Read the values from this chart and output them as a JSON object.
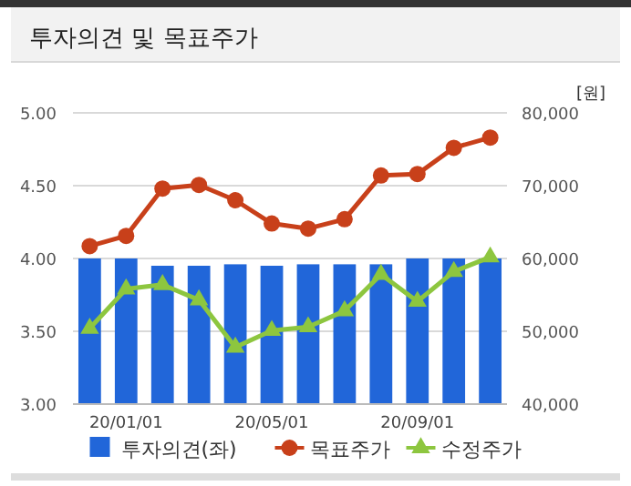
{
  "chart_data": {
    "type": "bar",
    "title": "투자의견 및 목표주가",
    "y2label": "[원]",
    "categories": [
      null,
      "20/01/01",
      null,
      null,
      null,
      "20/05/01",
      null,
      null,
      null,
      "20/09/01",
      null,
      null
    ],
    "series": [
      {
        "name": "투자의견(좌)",
        "color": "#2166d9",
        "values": [
          4.0,
          4.0,
          3.95,
          3.95,
          3.96,
          3.95,
          3.96,
          3.96,
          3.96,
          4.0,
          4.0,
          4.0
        ]
      },
      {
        "name": "목표주가",
        "type": "line",
        "axis": "y2",
        "color": "#c8401a",
        "marker": "circle",
        "values": [
          61700,
          63100,
          69600,
          70100,
          68000,
          64800,
          64100,
          65400,
          71400,
          71600,
          75200,
          76600
        ]
      },
      {
        "name": "수정주가",
        "type": "line",
        "axis": "y2",
        "color": "#8dc63f",
        "marker": "triangle",
        "values": [
          50400,
          55800,
          56400,
          54300,
          47800,
          50100,
          50600,
          52800,
          57800,
          54100,
          58200,
          60200
        ]
      }
    ],
    "ylim": [
      3,
      5
    ],
    "yticks": [
      {
        "value": 3,
        "label": "3.00"
      },
      {
        "value": 3.5,
        "label": "3.50"
      },
      {
        "value": 4,
        "label": "4.00"
      },
      {
        "value": 4.5,
        "label": "4.50"
      },
      {
        "value": 5,
        "label": "5.00"
      }
    ],
    "y2lim": [
      40000,
      80000
    ],
    "y2ticks": [
      {
        "value": 40000,
        "label": "40,000"
      },
      {
        "value": 50000,
        "label": "50,000"
      },
      {
        "value": 60000,
        "label": "60,000"
      },
      {
        "value": 70000,
        "label": "70,000"
      },
      {
        "value": 80000,
        "label": "80,000"
      }
    ],
    "grid": "y",
    "legend": "bottom"
  }
}
